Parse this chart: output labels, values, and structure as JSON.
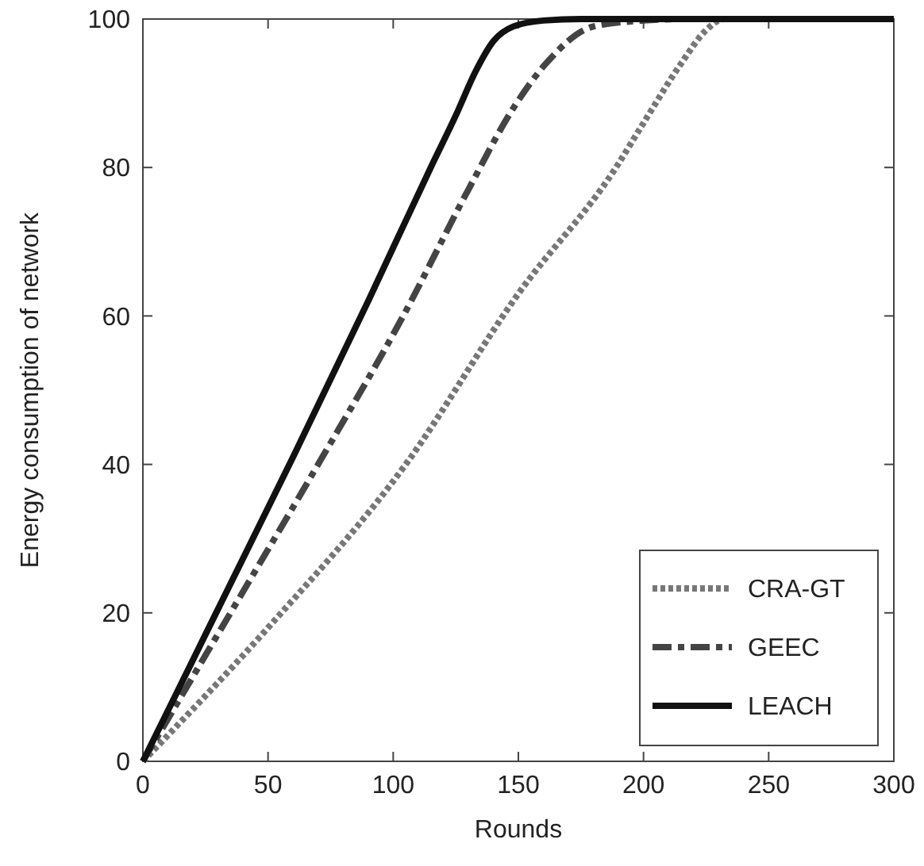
{
  "chart_data": {
    "type": "line",
    "xlabel": "Rounds",
    "ylabel": "Energy consumption of network",
    "xlim": [
      0,
      300
    ],
    "ylim": [
      0,
      100
    ],
    "xticks": [
      0,
      50,
      100,
      150,
      200,
      250,
      300
    ],
    "yticks": [
      0,
      20,
      40,
      60,
      80,
      100
    ],
    "grid": false,
    "legend": "bottom right",
    "marker": "none",
    "series": [
      {
        "name": "CRA-GT",
        "color": "#777777",
        "line_style": "dotted",
        "x": [
          0,
          50,
          105,
          150,
          189,
          200,
          215,
          225,
          232,
          300
        ],
        "values": [
          0,
          18,
          40,
          63,
          80,
          86,
          94,
          98.5,
          100,
          100
        ]
      },
      {
        "name": "GEEC",
        "color": "#444444",
        "line_style": "dashdot",
        "x": [
          0,
          35,
          70,
          104,
          130,
          148,
          161,
          180,
          200,
          215,
          300
        ],
        "values": [
          0,
          20,
          40,
          60,
          77,
          88,
          94,
          99,
          99.8,
          100,
          100
        ]
      },
      {
        "name": "LEACH",
        "color": "#111111",
        "line_style": "solid",
        "x": [
          0,
          30,
          60,
          90,
          115,
          125,
          133,
          140,
          148,
          160,
          175,
          300
        ],
        "values": [
          0,
          20.5,
          41,
          62,
          80,
          87,
          93,
          97,
          99,
          99.8,
          100,
          100
        ]
      }
    ]
  }
}
